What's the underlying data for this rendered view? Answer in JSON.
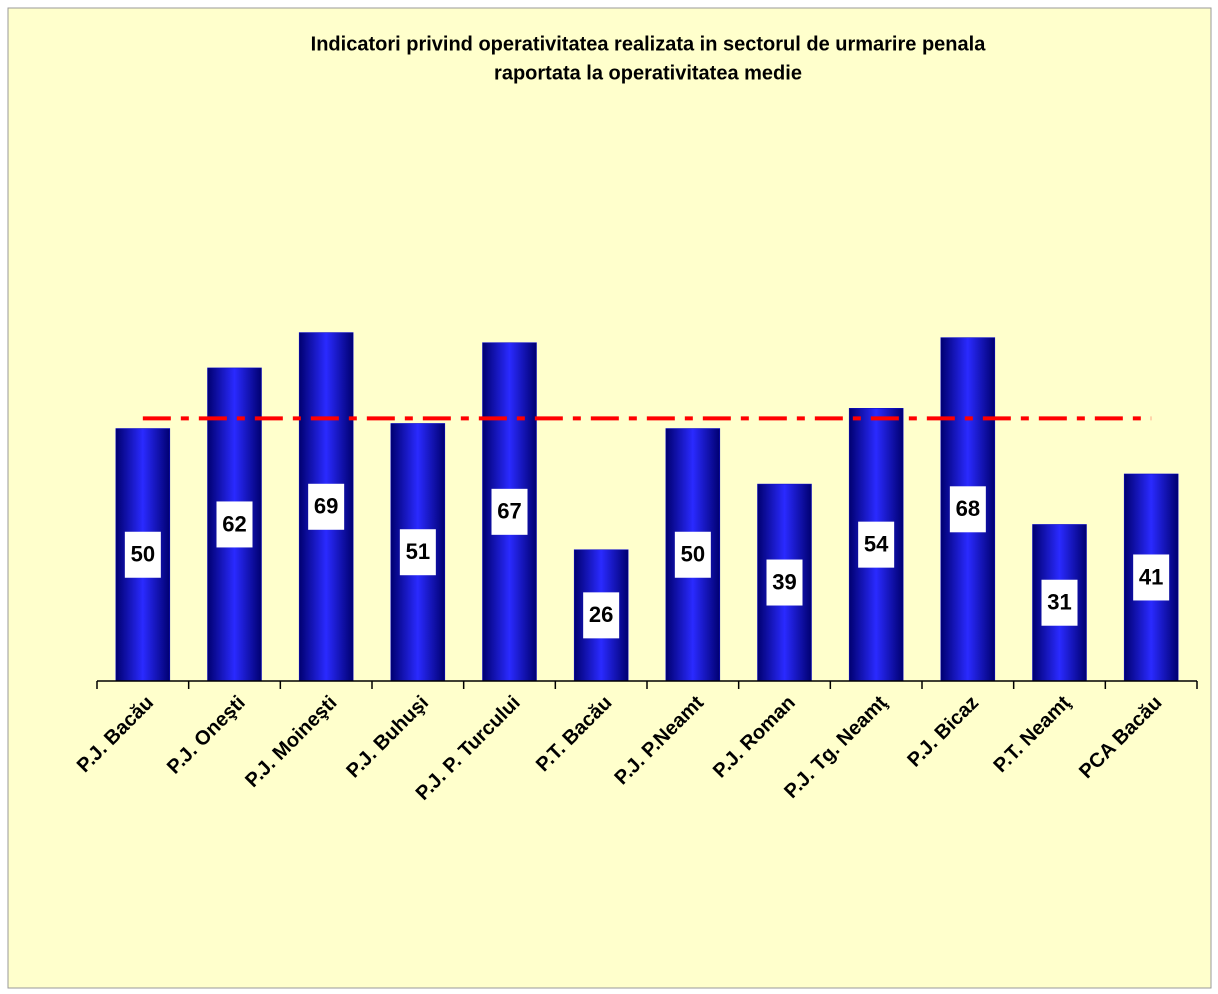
{
  "chart_data": {
    "type": "bar",
    "title": [
      "Indicatori privind operativitatea realizata in sectorul de urmarire penala",
      "raportata la operativitatea medie"
    ],
    "categories": [
      "P.J. Bacău",
      "P.J. Oneşti",
      "P.J. Moineşti",
      "P.J. Buhuşi",
      "P.J. P. Turcului",
      "P.T. Bacău",
      "P.J. P.Neamt",
      "P.J. Roman",
      "P.J. Tg. Neamţ",
      "P.J. Bicaz",
      "P.T. Neamţ",
      "PCA Bacău"
    ],
    "values": [
      50,
      62,
      69,
      51,
      67,
      26,
      50,
      39,
      54,
      68,
      31,
      41
    ],
    "color": "#0000cc",
    "ylim": [
      0,
      100
    ],
    "reference_line": {
      "value": 52,
      "color": "#ff0000"
    },
    "background": "#ffffcc"
  }
}
